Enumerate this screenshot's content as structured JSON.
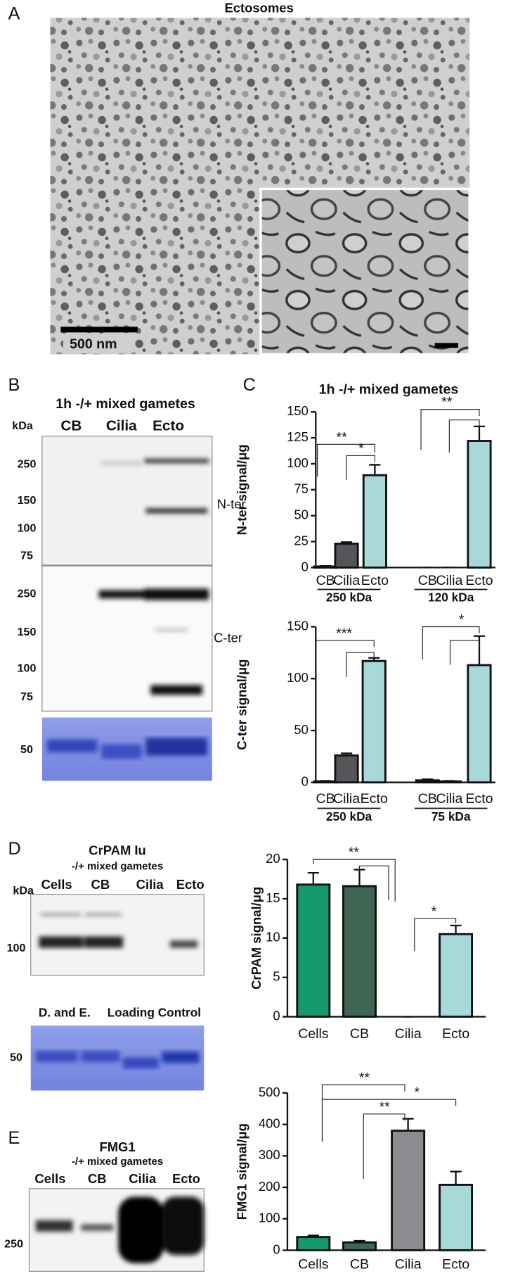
{
  "panels": {
    "a": {
      "letter": "A",
      "title": "Ectosomes",
      "scale": "500 nm"
    },
    "b": {
      "letter": "B",
      "title": "1h -/+ mixed gametes",
      "kda": "kDa",
      "lanes": [
        "CB",
        "Cilia",
        "Ecto"
      ],
      "nter_markers": [
        "250",
        "150",
        "100",
        "75"
      ],
      "nter": "N-ter",
      "cter_markers": [
        "250",
        "150",
        "100",
        "75"
      ],
      "cter": "C-ter",
      "load_marker": "50"
    },
    "c": {
      "letter": "C",
      "title": "1h  -/+ mixed gametes"
    },
    "d": {
      "letter": "D",
      "title": "CrPAM Iu",
      "subtitle": "-/+ mixed gametes",
      "kda": "kDa",
      "lanes": [
        "Cells",
        "CB",
        "Cilia",
        "Ecto"
      ],
      "marker": "100",
      "loading": "D. and E.     Loading Control",
      "load_marker": "50"
    },
    "e": {
      "letter": "E",
      "title": "FMG1",
      "subtitle": "-/+ mixed gametes",
      "lanes": [
        "Cells",
        "CB",
        "Cilia",
        "Ecto"
      ],
      "marker": "250"
    }
  },
  "chart_data": [
    {
      "type": "bar",
      "ylabel": "N-ter signal/μg",
      "categories": [
        "CB",
        "Cilia",
        "Ecto",
        "CB",
        "Cilia",
        "Ecto"
      ],
      "groups": [
        "250 kDa",
        "120 kDa"
      ],
      "values": [
        1,
        23,
        89,
        0,
        0,
        122
      ],
      "errors": [
        0.5,
        1.5,
        10,
        0,
        0,
        14
      ],
      "colors": [
        "#2e2e30",
        "#55565a",
        "#a9d8d8",
        "#2e2e30",
        "#55565a",
        "#a9d8d8"
      ],
      "ylim": [
        0,
        150
      ],
      "yticks": [
        0,
        25,
        50,
        75,
        100,
        125,
        150
      ],
      "annotations": [
        "**",
        "*",
        "**"
      ]
    },
    {
      "type": "bar",
      "ylabel": "C-ter signal/μg",
      "categories": [
        "CB",
        "Cilia",
        "Ecto",
        "CB",
        "Cilia",
        "Ecto"
      ],
      "groups": [
        "250 kDa",
        "75 kDa"
      ],
      "values": [
        1,
        26,
        117,
        2,
        1,
        113
      ],
      "errors": [
        0.5,
        2,
        3,
        1,
        0.5,
        28
      ],
      "colors": [
        "#2e2e30",
        "#55565a",
        "#a9d8d8",
        "#2e2e30",
        "#55565a",
        "#a9d8d8"
      ],
      "ylim": [
        0,
        150
      ],
      "yticks": [
        0,
        50,
        100,
        150
      ],
      "annotations": [
        "***",
        "*"
      ]
    },
    {
      "type": "bar",
      "ylabel": "CrPAM signal/μg",
      "categories": [
        "Cells",
        "CB",
        "Cilia",
        "Ecto"
      ],
      "values": [
        16.8,
        16.6,
        0,
        10.5
      ],
      "errors": [
        1.5,
        2.1,
        0,
        1.1
      ],
      "colors": [
        "#15996c",
        "#3d6752",
        "#8a8c90",
        "#a9d8d8"
      ],
      "ylim": [
        0,
        20
      ],
      "yticks": [
        0,
        5,
        10,
        15,
        20
      ],
      "annotations": [
        "**",
        "*"
      ]
    },
    {
      "type": "bar",
      "ylabel": "FMG1 signal/μg",
      "categories": [
        "Cells",
        "CB",
        "Cilia",
        "Ecto"
      ],
      "values": [
        42,
        25,
        380,
        208
      ],
      "errors": [
        5,
        5,
        38,
        42
      ],
      "colors": [
        "#15996c",
        "#3d6752",
        "#8a8c90",
        "#a9d8d8"
      ],
      "ylim": [
        0,
        500
      ],
      "yticks": [
        0,
        100,
        200,
        300,
        400,
        500
      ],
      "annotations": [
        "**",
        "*",
        "**"
      ]
    }
  ]
}
